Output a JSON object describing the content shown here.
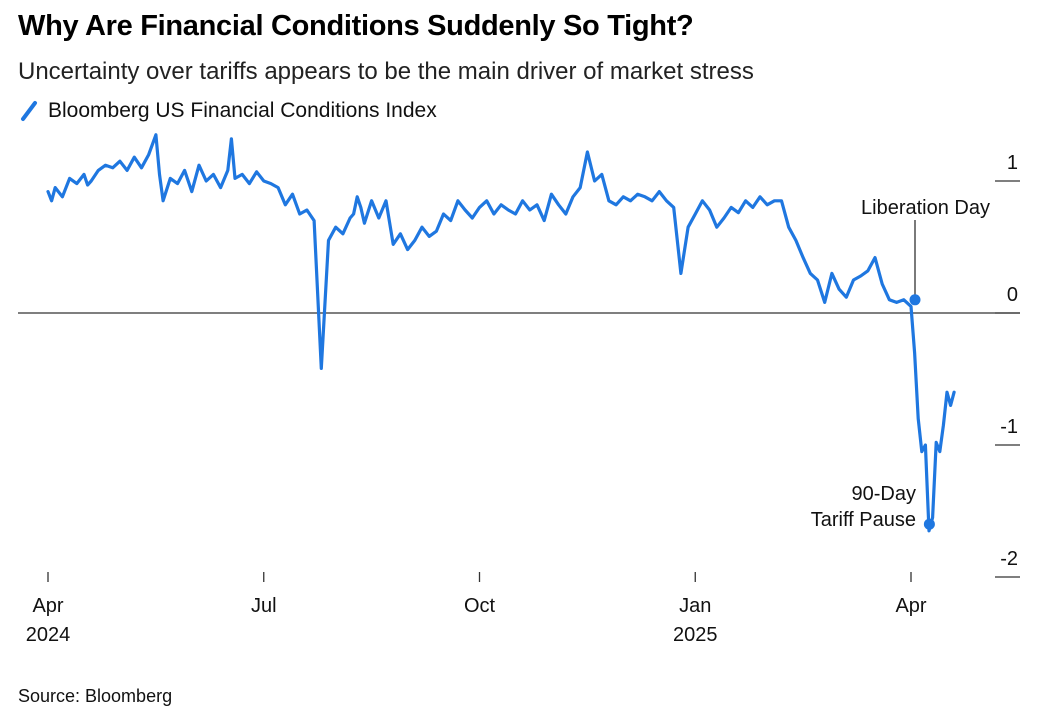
{
  "chart_data": {
    "type": "line",
    "title": "Why Are Financial Conditions Suddenly So Tight?",
    "subtitle": "Uncertainty over tariffs appears to be the main driver of market stress",
    "legend": [
      "Bloomberg US Financial Conditions Index"
    ],
    "series_color": "#1f77e0",
    "ylim": [
      -2.2,
      1.3
    ],
    "xlim": [
      -0.1,
      13.4
    ],
    "y_ticks": [
      {
        "value": 1,
        "label": "1"
      },
      {
        "value": 0,
        "label": "0"
      },
      {
        "value": -1,
        "label": "-1"
      },
      {
        "value": -2,
        "label": "-2"
      }
    ],
    "x_ticks": [
      {
        "value": 0,
        "label": "Apr",
        "year": "2024"
      },
      {
        "value": 3,
        "label": "Jul",
        "year": ""
      },
      {
        "value": 6,
        "label": "Oct",
        "year": ""
      },
      {
        "value": 9,
        "label": "Jan",
        "year": "2025"
      },
      {
        "value": 12,
        "label": "Apr",
        "year": ""
      }
    ],
    "series": [
      {
        "name": "Bloomberg US Financial Conditions Index",
        "x": [
          0.0,
          0.05,
          0.1,
          0.2,
          0.3,
          0.4,
          0.5,
          0.55,
          0.6,
          0.7,
          0.8,
          0.9,
          1.0,
          1.1,
          1.2,
          1.3,
          1.4,
          1.5,
          1.55,
          1.6,
          1.7,
          1.8,
          1.9,
          2.0,
          2.1,
          2.2,
          2.3,
          2.4,
          2.5,
          2.55,
          2.6,
          2.7,
          2.8,
          2.9,
          3.0,
          3.1,
          3.2,
          3.3,
          3.4,
          3.5,
          3.6,
          3.7,
          3.8,
          3.9,
          4.0,
          4.1,
          4.2,
          4.25,
          4.3,
          4.35,
          4.4,
          4.5,
          4.6,
          4.7,
          4.8,
          4.9,
          5.0,
          5.1,
          5.2,
          5.3,
          5.4,
          5.5,
          5.6,
          5.7,
          5.8,
          5.9,
          6.0,
          6.1,
          6.2,
          6.3,
          6.4,
          6.5,
          6.6,
          6.7,
          6.8,
          6.9,
          7.0,
          7.1,
          7.2,
          7.3,
          7.4,
          7.5,
          7.6,
          7.7,
          7.8,
          7.9,
          8.0,
          8.1,
          8.2,
          8.3,
          8.4,
          8.5,
          8.6,
          8.7,
          8.8,
          8.9,
          9.0,
          9.1,
          9.2,
          9.3,
          9.4,
          9.5,
          9.6,
          9.7,
          9.8,
          9.9,
          10.0,
          10.1,
          10.2,
          10.3,
          10.4,
          10.5,
          10.6,
          10.7,
          10.8,
          10.9,
          11.0,
          11.1,
          11.2,
          11.3,
          11.4,
          11.5,
          11.6,
          11.7,
          11.8,
          11.9,
          12.0,
          12.05,
          12.1,
          12.15,
          12.2,
          12.25,
          12.3,
          12.35,
          12.4,
          12.45,
          12.5,
          12.55,
          12.6
        ],
        "values": [
          0.92,
          0.85,
          0.95,
          0.88,
          1.02,
          0.98,
          1.05,
          0.97,
          1.0,
          1.08,
          1.12,
          1.1,
          1.15,
          1.08,
          1.18,
          1.1,
          1.2,
          1.35,
          1.05,
          0.85,
          1.02,
          0.98,
          1.08,
          0.92,
          1.12,
          1.0,
          1.05,
          0.95,
          1.08,
          1.32,
          1.02,
          1.05,
          0.98,
          1.07,
          1.0,
          0.98,
          0.95,
          0.82,
          0.9,
          0.75,
          0.78,
          0.7,
          -0.42,
          0.55,
          0.65,
          0.6,
          0.72,
          0.75,
          0.88,
          0.8,
          0.68,
          0.85,
          0.72,
          0.85,
          0.52,
          0.6,
          0.48,
          0.55,
          0.65,
          0.58,
          0.62,
          0.75,
          0.7,
          0.85,
          0.78,
          0.72,
          0.8,
          0.85,
          0.75,
          0.82,
          0.78,
          0.75,
          0.85,
          0.78,
          0.82,
          0.7,
          0.9,
          0.82,
          0.75,
          0.88,
          0.95,
          1.22,
          1.0,
          1.05,
          0.85,
          0.82,
          0.88,
          0.85,
          0.9,
          0.88,
          0.85,
          0.92,
          0.85,
          0.8,
          0.3,
          0.65,
          0.75,
          0.85,
          0.78,
          0.65,
          0.72,
          0.8,
          0.76,
          0.85,
          0.8,
          0.88,
          0.82,
          0.85,
          0.85,
          0.65,
          0.55,
          0.42,
          0.3,
          0.25,
          0.08,
          0.3,
          0.18,
          0.12,
          0.25,
          0.28,
          0.32,
          0.42,
          0.22,
          0.1,
          0.08,
          0.1,
          0.05,
          -0.3,
          -0.8,
          -1.05,
          -1.0,
          -1.65,
          -1.55,
          -0.98,
          -1.05,
          -0.85,
          -0.6,
          -0.7,
          -0.6
        ]
      }
    ],
    "annotations": [
      {
        "lines": [
          "Liberation Day"
        ],
        "x": 12.0,
        "y": 0.1
      },
      {
        "lines": [
          "90-Day",
          "Tariff Pause"
        ],
        "x": 12.2,
        "y": -1.6
      }
    ],
    "source": "Source: Bloomberg"
  }
}
